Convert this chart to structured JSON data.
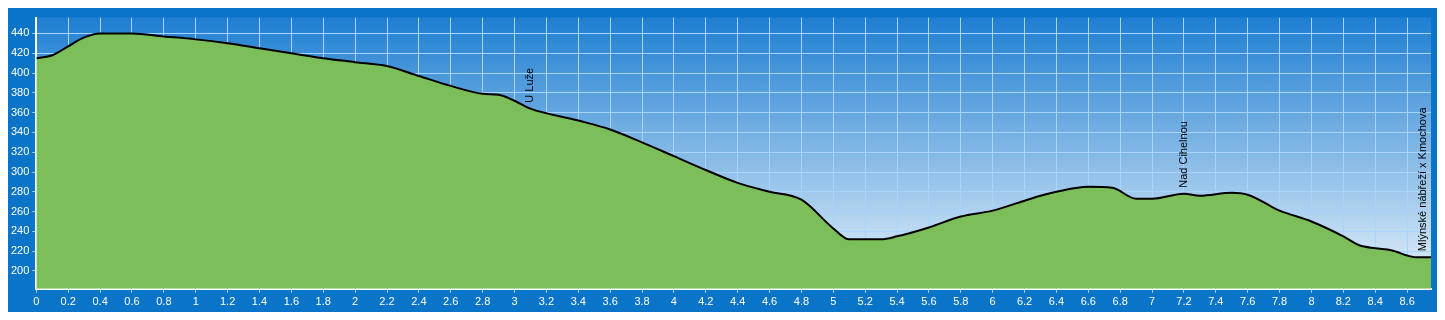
{
  "chart_data": {
    "type": "area",
    "x": [
      0,
      0.1,
      0.2,
      0.3,
      0.4,
      0.6,
      0.8,
      1.0,
      1.2,
      1.4,
      1.6,
      1.8,
      2.0,
      2.2,
      2.4,
      2.6,
      2.8,
      2.9,
      3.0,
      3.1,
      3.4,
      3.6,
      3.8,
      4.0,
      4.2,
      4.4,
      4.6,
      4.8,
      5.0,
      5.1,
      5.3,
      5.4,
      5.6,
      5.8,
      6.0,
      6.2,
      6.3,
      6.4,
      6.6,
      6.75,
      6.9,
      7.0,
      7.2,
      7.3,
      7.5,
      7.6,
      7.8,
      8.0,
      8.2,
      8.3,
      8.4,
      8.5,
      8.65,
      8.75
    ],
    "series": [
      {
        "color": "#7cbf5a",
        "values": [
          415,
          418,
          427,
          436,
          440,
          440,
          437,
          434,
          430,
          425,
          420,
          415,
          411,
          407,
          397,
          387,
          379,
          378,
          372,
          364,
          352,
          343,
          330,
          316,
          302,
          289,
          280,
          272,
          243,
          232,
          232,
          235,
          244,
          255,
          261,
          271,
          276,
          280,
          285,
          284,
          273,
          273,
          278,
          276,
          279,
          277,
          261,
          250,
          235,
          226,
          223,
          221,
          214,
          214
        ]
      }
    ],
    "xlim": [
      0,
      8.75
    ],
    "ylim": [
      182,
      456
    ],
    "xticks": [
      0,
      0.2,
      0.4,
      0.6,
      0.8,
      1,
      1.2,
      1.4,
      1.6,
      1.8,
      2,
      2.2,
      2.4,
      2.6,
      2.8,
      3,
      3.2,
      3.4,
      3.6,
      3.8,
      4,
      4.2,
      4.4,
      4.6,
      4.8,
      5,
      5.2,
      5.4,
      5.6,
      5.8,
      6,
      6.2,
      6.4,
      6.6,
      6.8,
      7,
      7.2,
      7.4,
      7.6,
      7.8,
      8,
      8.2,
      8.4,
      8.6
    ],
    "yticks": [
      200,
      220,
      240,
      260,
      280,
      300,
      320,
      340,
      360,
      380,
      400,
      420,
      440
    ],
    "grid": true,
    "legend": false,
    "annotations": [
      {
        "text": "U Luže",
        "x": 3.1,
        "y": 364
      },
      {
        "text": "Nad Cihelnou",
        "x": 7.2,
        "y": 278
      },
      {
        "text": "Mlýnské nábřeží x Kmochova",
        "x": 8.7,
        "y": 214
      }
    ]
  }
}
